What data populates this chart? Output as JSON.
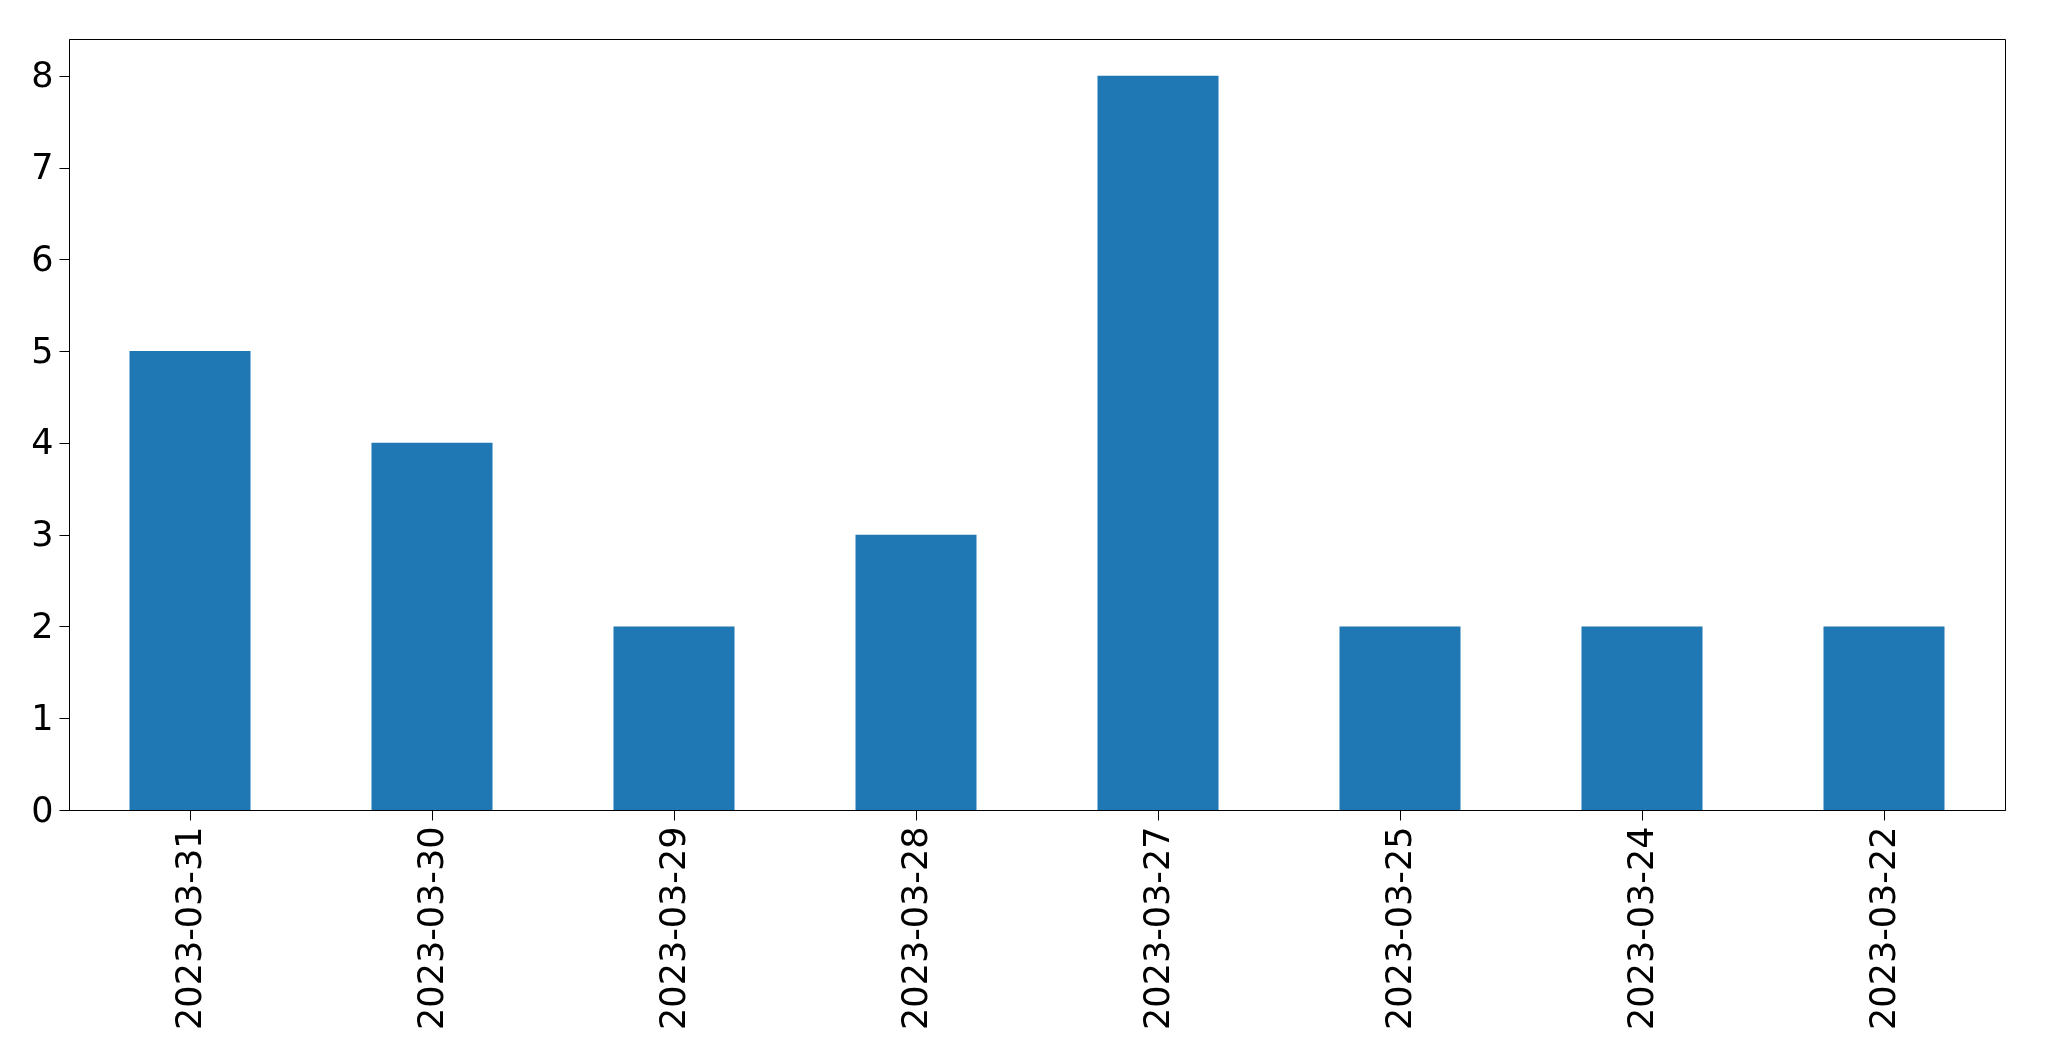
{
  "chart_data": {
    "type": "bar",
    "categories": [
      "2023-03-31",
      "2023-03-30",
      "2023-03-29",
      "2023-03-28",
      "2023-03-27",
      "2023-03-25",
      "2023-03-24",
      "2023-03-22"
    ],
    "values": [
      5,
      4,
      2,
      3,
      8,
      2,
      2,
      2
    ],
    "color": "#1f77b4",
    "ylim": [
      0,
      8.4
    ],
    "yticks": [
      0,
      1,
      2,
      3,
      4,
      5,
      6,
      7,
      8
    ],
    "grid": false
  }
}
